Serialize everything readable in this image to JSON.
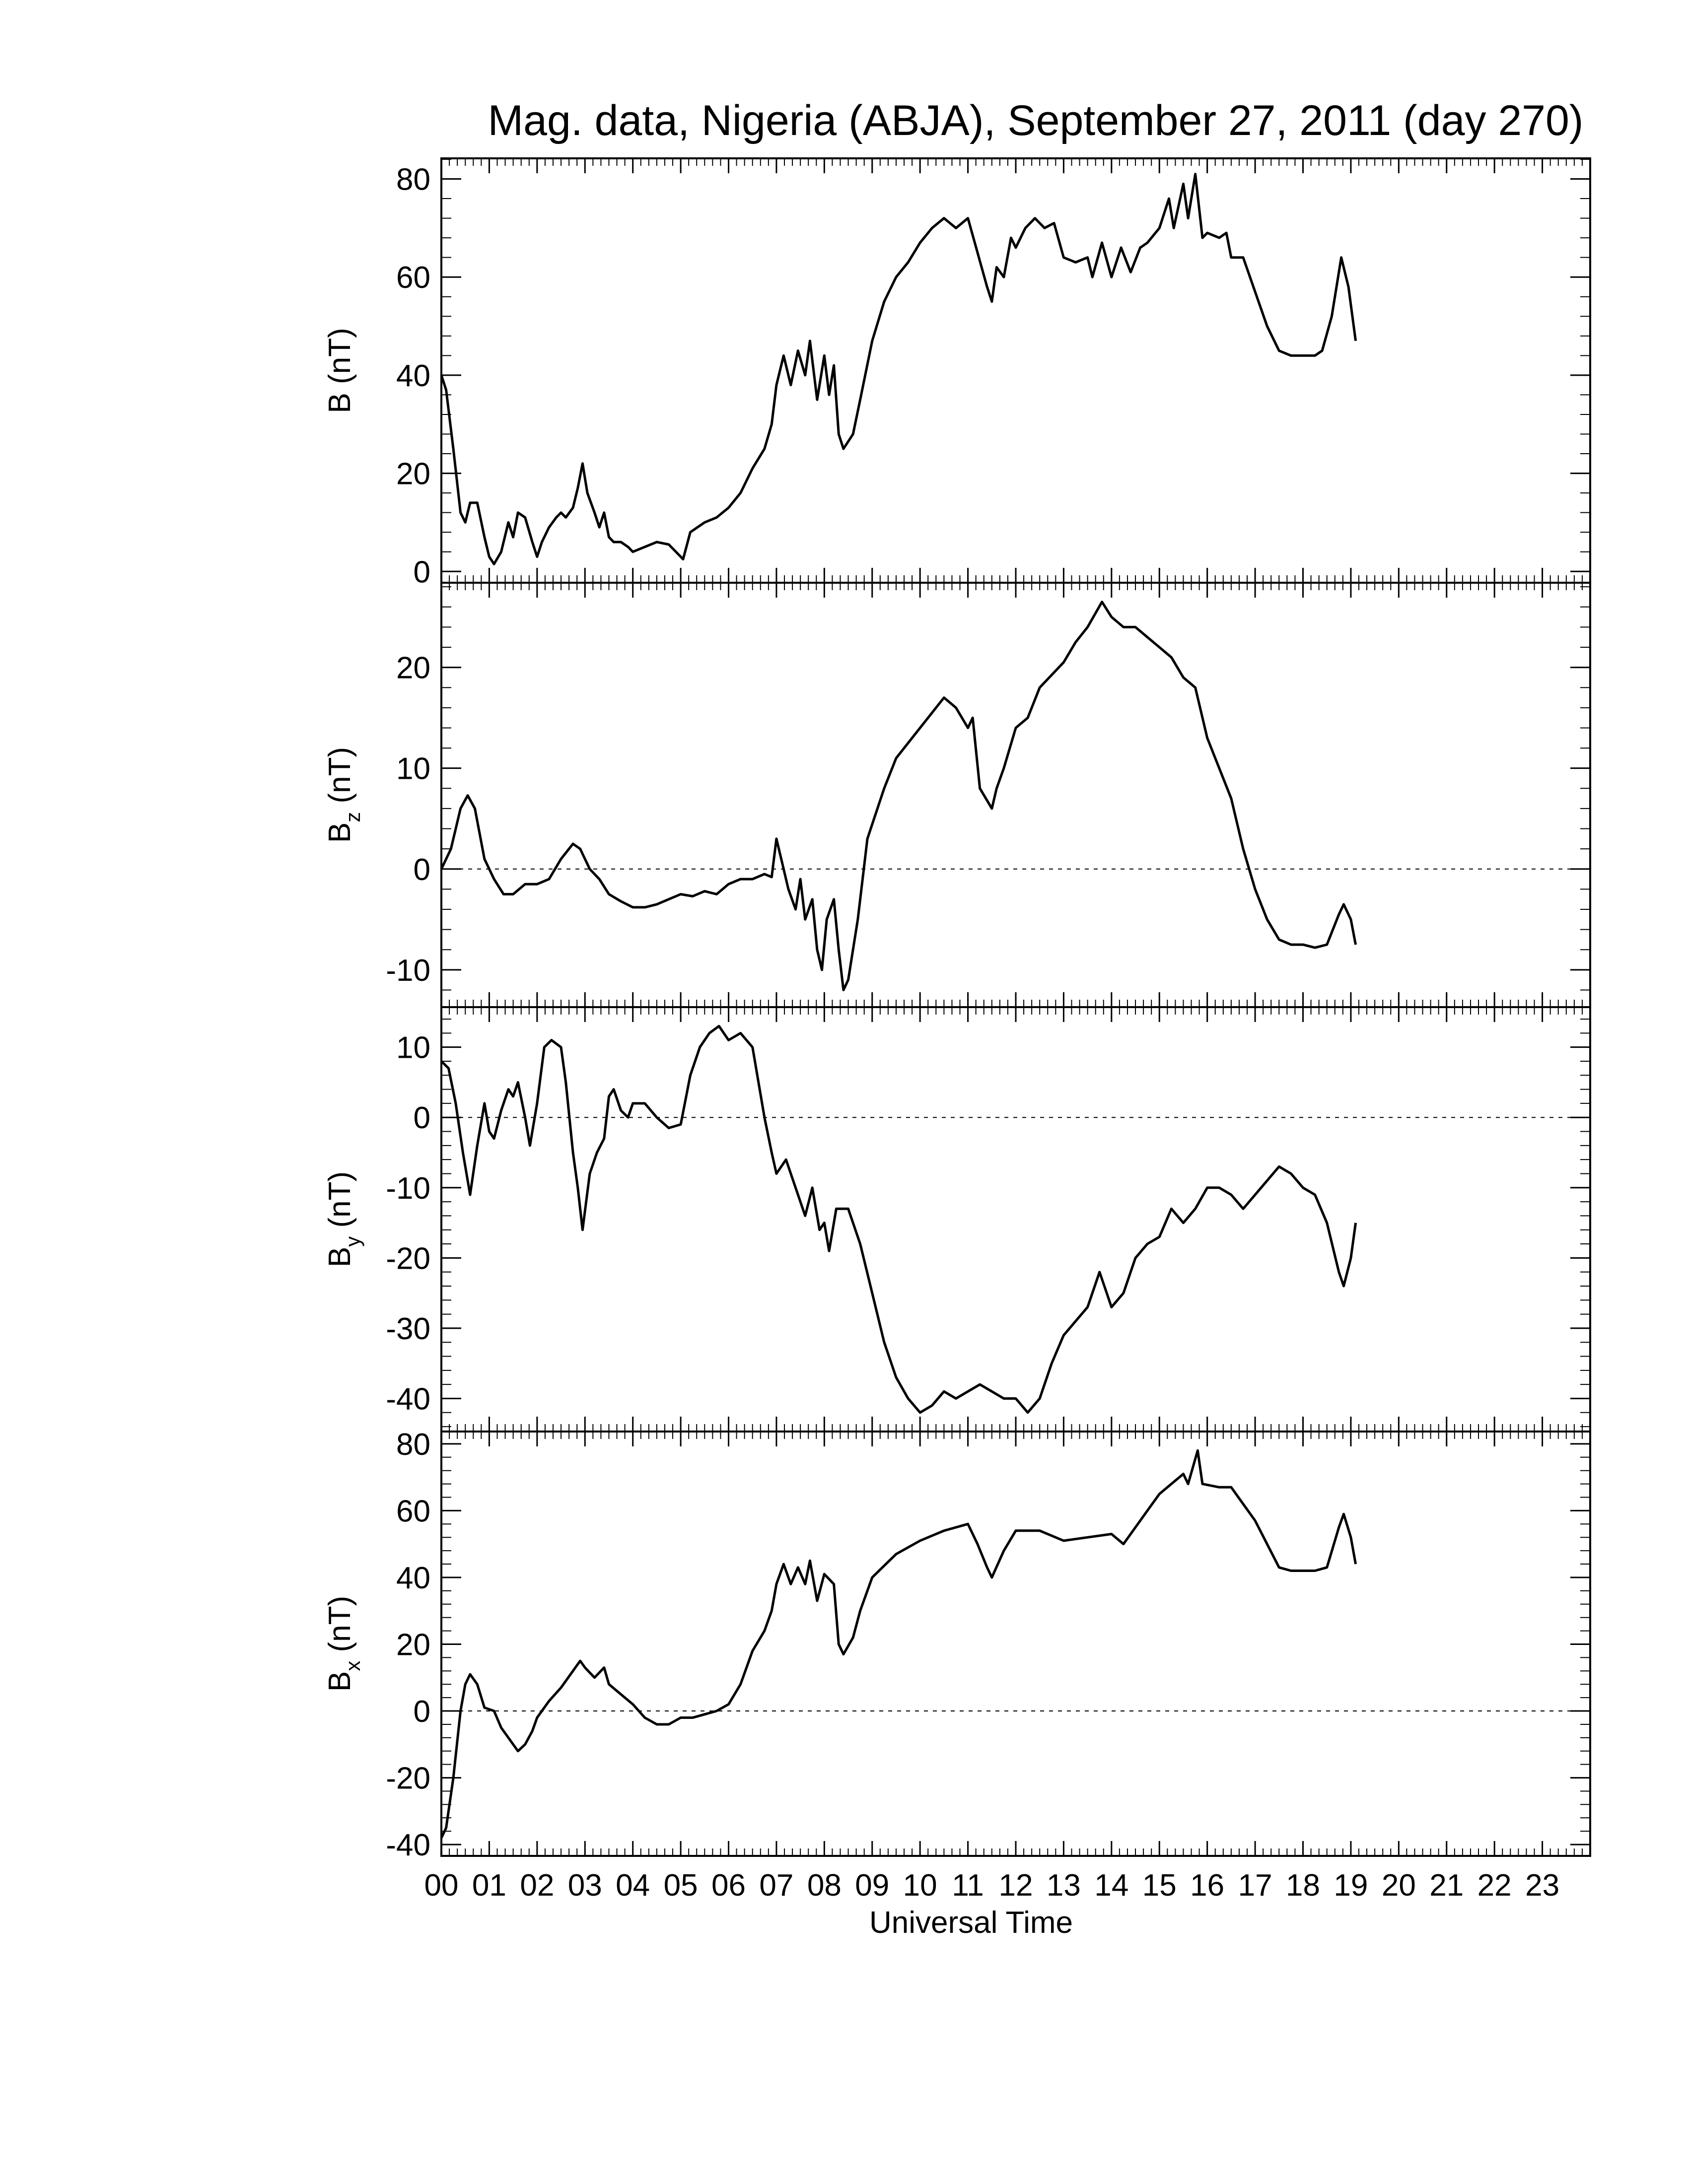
{
  "chart_data": [
    {
      "type": "line",
      "title": "Mag. data, Nigeria (ABJA), September 27, 2011 (day 270)",
      "ylabel": "B",
      "ylabel_unit": " (nT)",
      "color": "#000000",
      "zero_line": false,
      "ylim": [
        -2.3,
        84.2
      ],
      "yticks": [
        0,
        20,
        40,
        60,
        80
      ],
      "x": [
        0,
        0.1,
        0.25,
        0.4,
        0.5,
        0.6,
        0.75,
        0.9,
        1.0,
        1.1,
        1.25,
        1.4,
        1.5,
        1.6,
        1.75,
        1.9,
        2.0,
        2.1,
        2.25,
        2.4,
        2.5,
        2.6,
        2.75,
        2.85,
        2.95,
        3.05,
        3.2,
        3.3,
        3.4,
        3.5,
        3.6,
        3.75,
        3.9,
        4.0,
        4.25,
        4.5,
        4.75,
        5.0,
        5.05,
        5.2,
        5.5,
        5.75,
        6.0,
        6.25,
        6.5,
        6.75,
        6.9,
        7.0,
        7.15,
        7.3,
        7.45,
        7.6,
        7.7,
        7.85,
        8.0,
        8.1,
        8.2,
        8.3,
        8.4,
        8.6,
        8.75,
        9.0,
        9.25,
        9.5,
        9.75,
        10.0,
        10.25,
        10.5,
        10.75,
        11.0,
        11.2,
        11.4,
        11.5,
        11.6,
        11.75,
        11.9,
        12.0,
        12.2,
        12.4,
        12.6,
        12.8,
        13.0,
        13.25,
        13.5,
        13.6,
        13.8,
        14.0,
        14.2,
        14.4,
        14.6,
        14.75,
        15.0,
        15.2,
        15.3,
        15.5,
        15.6,
        15.75,
        15.9,
        16.0,
        16.25,
        16.4,
        16.5,
        16.75,
        17.0,
        17.25,
        17.5,
        17.75,
        18.0,
        18.25,
        18.4,
        18.6,
        18.8,
        18.95,
        19.1
      ],
      "values": [
        40,
        37,
        25,
        12,
        10,
        14,
        14,
        7,
        3,
        1.5,
        4,
        10,
        7,
        12,
        11,
        6,
        3,
        6,
        9,
        11,
        12,
        11,
        13,
        17,
        22,
        16,
        12,
        9,
        12,
        7,
        6,
        6,
        5,
        4,
        5,
        6,
        5.5,
        3,
        2.5,
        8,
        10,
        11,
        13,
        16,
        21,
        25,
        30,
        38,
        44,
        38,
        45,
        40,
        47,
        35,
        44,
        36,
        42,
        28,
        25,
        28,
        35,
        47,
        55,
        60,
        63,
        67,
        70,
        72,
        70,
        72,
        65,
        58,
        55,
        62,
        60,
        68,
        66,
        70,
        72,
        70,
        71,
        64,
        63,
        64,
        60,
        67,
        60,
        66,
        61,
        66,
        67,
        70,
        76,
        70,
        79,
        72,
        81,
        68,
        69,
        68,
        69,
        64,
        64,
        57,
        50,
        45,
        44,
        44,
        44,
        45,
        52,
        64,
        58,
        47
      ]
    },
    {
      "type": "line",
      "ylabel": "B",
      "ylabel_sub": "z",
      "ylabel_unit": " (nT)",
      "color": "#000000",
      "zero_line": true,
      "ylim": [
        -13.7,
        28.4
      ],
      "yticks": [
        -10,
        0,
        10,
        20
      ],
      "x": [
        0,
        0.2,
        0.4,
        0.55,
        0.7,
        0.9,
        1.1,
        1.3,
        1.5,
        1.75,
        2.0,
        2.25,
        2.5,
        2.75,
        2.9,
        3.1,
        3.3,
        3.5,
        3.75,
        4.0,
        4.25,
        4.5,
        4.75,
        5.0,
        5.25,
        5.5,
        5.75,
        6.0,
        6.25,
        6.5,
        6.75,
        6.9,
        7.0,
        7.1,
        7.25,
        7.4,
        7.5,
        7.6,
        7.75,
        7.85,
        7.95,
        8.05,
        8.2,
        8.3,
        8.4,
        8.5,
        8.7,
        8.9,
        9.25,
        9.5,
        10.0,
        10.25,
        10.5,
        10.75,
        11.0,
        11.1,
        11.25,
        11.5,
        11.6,
        11.75,
        12.0,
        12.25,
        12.5,
        13.0,
        13.25,
        13.5,
        13.8,
        14.0,
        14.25,
        14.5,
        14.75,
        15.0,
        15.25,
        15.5,
        15.75,
        16.0,
        16.25,
        16.5,
        16.75,
        17.0,
        17.25,
        17.5,
        17.75,
        18.0,
        18.25,
        18.5,
        18.75,
        18.85,
        19.0,
        19.1
      ],
      "values": [
        0,
        2,
        6,
        7.3,
        6,
        1,
        -1,
        -2.5,
        -2.5,
        -1.5,
        -1.5,
        -1,
        1,
        2.5,
        2,
        0,
        -1,
        -2.5,
        -3.2,
        -3.8,
        -3.8,
        -3.5,
        -3,
        -2.5,
        -2.7,
        -2.2,
        -2.5,
        -1.5,
        -1,
        -1,
        -0.5,
        -0.8,
        3,
        1,
        -2,
        -4,
        -1,
        -5,
        -3,
        -8,
        -10,
        -5,
        -3,
        -8,
        -12,
        -11,
        -5,
        3,
        8,
        11,
        14,
        15.5,
        17,
        16,
        14,
        15,
        8,
        6,
        8,
        10,
        14,
        15,
        18,
        20.5,
        22.5,
        24,
        26.5,
        25,
        24,
        24,
        23,
        22,
        21,
        19,
        18,
        13,
        10,
        7,
        2,
        -2,
        -5,
        -7,
        -7.5,
        -7.5,
        -7.8,
        -7.5,
        -4.5,
        -3.5,
        -5,
        -7.5
      ]
    },
    {
      "type": "line",
      "ylabel": "B",
      "ylabel_sub": "y",
      "ylabel_unit": " (nT)",
      "color": "#000000",
      "zero_line": true,
      "ylim": [
        -44.7,
        15.7
      ],
      "yticks": [
        -40,
        -30,
        -20,
        -10,
        0,
        10
      ],
      "x": [
        0,
        0.15,
        0.3,
        0.45,
        0.6,
        0.75,
        0.9,
        1.0,
        1.1,
        1.25,
        1.4,
        1.5,
        1.6,
        1.75,
        1.85,
        2.0,
        2.15,
        2.3,
        2.5,
        2.6,
        2.75,
        2.85,
        2.95,
        3.1,
        3.25,
        3.4,
        3.5,
        3.6,
        3.75,
        3.9,
        4.0,
        4.25,
        4.5,
        4.75,
        5.0,
        5.2,
        5.4,
        5.6,
        5.8,
        6.0,
        6.25,
        6.5,
        6.75,
        6.9,
        7.0,
        7.2,
        7.4,
        7.6,
        7.75,
        7.9,
        8.0,
        8.1,
        8.25,
        8.5,
        8.75,
        9.0,
        9.25,
        9.5,
        9.75,
        10.0,
        10.25,
        10.5,
        10.75,
        11.0,
        11.25,
        11.5,
        11.75,
        12.0,
        12.25,
        12.5,
        12.75,
        13.0,
        13.25,
        13.5,
        13.75,
        13.85,
        14.0,
        14.25,
        14.5,
        14.75,
        15.0,
        15.25,
        15.5,
        15.75,
        16.0,
        16.25,
        16.5,
        16.75,
        17.0,
        17.25,
        17.5,
        17.75,
        18.0,
        18.25,
        18.5,
        18.75,
        18.85,
        19.0,
        19.1
      ],
      "values": [
        8,
        7,
        2,
        -5,
        -11,
        -4,
        2,
        -2,
        -3,
        1,
        4,
        3,
        5,
        0,
        -4,
        2,
        10,
        11,
        10,
        5,
        -5,
        -10,
        -16,
        -8,
        -5,
        -3,
        3,
        4,
        1,
        0,
        2,
        2,
        0,
        -1.5,
        -1,
        6,
        10,
        12,
        13,
        11,
        12,
        10,
        0,
        -5,
        -8,
        -6,
        -10,
        -14,
        -10,
        -16,
        -15,
        -19,
        -13,
        -13,
        -18,
        -25,
        -32,
        -37,
        -40,
        -42,
        -41,
        -39,
        -40,
        -39,
        -38,
        -39,
        -40,
        -40,
        -42,
        -40,
        -35,
        -31,
        -29,
        -27,
        -22,
        -24,
        -27,
        -25,
        -20,
        -18,
        -17,
        -13,
        -15,
        -13,
        -10,
        -10,
        -11,
        -13,
        -11,
        -9,
        -7,
        -8,
        -10,
        -11,
        -15,
        -22,
        -24,
        -20,
        -15
      ]
    },
    {
      "type": "line",
      "ylabel": "B",
      "ylabel_sub": "x",
      "ylabel_unit": " (nT)",
      "color": "#000000",
      "zero_line": true,
      "xlabel": "Universal Time",
      "ylim": [
        -43.4,
        83.7
      ],
      "yticks": [
        -40,
        -20,
        0,
        20,
        40,
        60,
        80
      ],
      "xlim": [
        0,
        24
      ],
      "xticks": [
        {
          "value": 0,
          "label": "00"
        },
        {
          "value": 1,
          "label": "01"
        },
        {
          "value": 2,
          "label": "02"
        },
        {
          "value": 3,
          "label": "03"
        },
        {
          "value": 4,
          "label": "04"
        },
        {
          "value": 5,
          "label": "05"
        },
        {
          "value": 6,
          "label": "06"
        },
        {
          "value": 7,
          "label": "07"
        },
        {
          "value": 8,
          "label": "08"
        },
        {
          "value": 9,
          "label": "09"
        },
        10,
        11,
        12,
        13,
        14,
        15,
        16,
        17,
        18,
        19,
        20,
        21,
        22,
        23
      ],
      "x": [
        0,
        0.1,
        0.25,
        0.4,
        0.5,
        0.6,
        0.75,
        0.9,
        1.1,
        1.25,
        1.4,
        1.5,
        1.6,
        1.75,
        1.9,
        2.0,
        2.25,
        2.5,
        2.75,
        2.9,
        3.0,
        3.2,
        3.4,
        3.5,
        3.75,
        4.0,
        4.25,
        4.5,
        4.75,
        5.0,
        5.25,
        5.5,
        5.75,
        6.0,
        6.25,
        6.5,
        6.75,
        6.9,
        7.0,
        7.15,
        7.3,
        7.45,
        7.6,
        7.7,
        7.85,
        8.0,
        8.2,
        8.3,
        8.4,
        8.6,
        8.75,
        9.0,
        9.5,
        10.0,
        10.5,
        11.0,
        11.2,
        11.4,
        11.5,
        11.75,
        12.0,
        12.5,
        13.0,
        13.5,
        14.0,
        14.25,
        14.5,
        14.75,
        15.0,
        15.25,
        15.5,
        15.6,
        15.8,
        15.9,
        16.25,
        16.5,
        16.75,
        17.0,
        17.25,
        17.5,
        17.75,
        18.0,
        18.25,
        18.5,
        18.75,
        18.85,
        19.0,
        19.1
      ],
      "values": [
        -38,
        -35,
        -20,
        0,
        8,
        11,
        8,
        1,
        0,
        -5,
        -8,
        -10,
        -12,
        -10,
        -6,
        -2,
        3,
        7,
        12,
        15,
        13,
        10,
        13,
        8,
        5,
        2,
        -2,
        -4,
        -4,
        -2,
        -2,
        -1,
        0,
        2,
        8,
        18,
        24,
        30,
        38,
        44,
        38,
        43,
        38,
        45,
        33,
        41,
        38,
        20,
        17,
        22,
        30,
        40,
        47,
        51,
        54,
        56,
        50,
        43,
        40,
        48,
        54,
        54,
        51,
        52,
        53,
        50,
        55,
        60,
        65,
        68,
        71,
        68,
        78,
        68,
        67,
        67,
        62,
        57,
        50,
        43,
        42,
        42,
        42,
        43,
        55,
        59,
        52,
        44
      ]
    }
  ]
}
